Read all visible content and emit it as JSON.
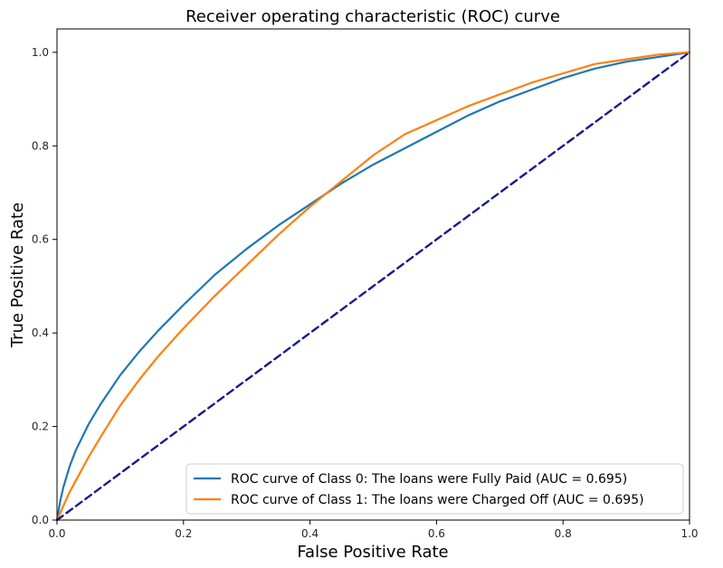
{
  "chart_data": {
    "type": "line",
    "title": "Receiver operating characteristic (ROC) curve",
    "xlabel": "False Positive Rate",
    "ylabel": "True Positive Rate",
    "xlim": [
      0.0,
      1.0
    ],
    "ylim": [
      0.0,
      1.05
    ],
    "x_ticks": [
      "0.0",
      "0.2",
      "0.4",
      "0.6",
      "0.8",
      "1.0"
    ],
    "y_ticks": [
      "0.0",
      "0.2",
      "0.4",
      "0.6",
      "0.8",
      "1.0"
    ],
    "grid": false,
    "legend_position": "lower-right",
    "series": [
      {
        "name": "ROC curve of Class 0: The loans were Fully Paid (AUC = 0.695)",
        "color": "#1f77b4",
        "style": "solid",
        "x": [
          0.0,
          0.005,
          0.01,
          0.02,
          0.03,
          0.05,
          0.07,
          0.1,
          0.13,
          0.16,
          0.2,
          0.25,
          0.3,
          0.35,
          0.4,
          0.45,
          0.5,
          0.55,
          0.6,
          0.65,
          0.7,
          0.75,
          0.8,
          0.85,
          0.9,
          0.95,
          1.0
        ],
        "y": [
          0.0,
          0.04,
          0.07,
          0.115,
          0.15,
          0.205,
          0.25,
          0.31,
          0.36,
          0.405,
          0.46,
          0.525,
          0.58,
          0.63,
          0.675,
          0.72,
          0.76,
          0.795,
          0.83,
          0.865,
          0.895,
          0.92,
          0.945,
          0.965,
          0.98,
          0.99,
          1.0
        ]
      },
      {
        "name": "ROC curve of Class 1: The loans were Charged Off (AUC = 0.695)",
        "color": "#ff7f0e",
        "style": "solid",
        "x": [
          0.0,
          0.005,
          0.01,
          0.02,
          0.03,
          0.05,
          0.07,
          0.1,
          0.13,
          0.16,
          0.2,
          0.25,
          0.3,
          0.35,
          0.4,
          0.45,
          0.5,
          0.55,
          0.6,
          0.65,
          0.7,
          0.75,
          0.8,
          0.85,
          0.9,
          0.95,
          1.0
        ],
        "y": [
          0.0,
          0.015,
          0.03,
          0.06,
          0.085,
          0.135,
          0.18,
          0.245,
          0.3,
          0.35,
          0.41,
          0.48,
          0.545,
          0.61,
          0.67,
          0.725,
          0.78,
          0.825,
          0.855,
          0.885,
          0.91,
          0.935,
          0.955,
          0.975,
          0.985,
          0.995,
          1.0
        ]
      },
      {
        "name": "",
        "color": "#1a1a8c",
        "style": "dashed",
        "x": [
          0.0,
          1.0
        ],
        "y": [
          0.0,
          1.0
        ]
      }
    ]
  }
}
